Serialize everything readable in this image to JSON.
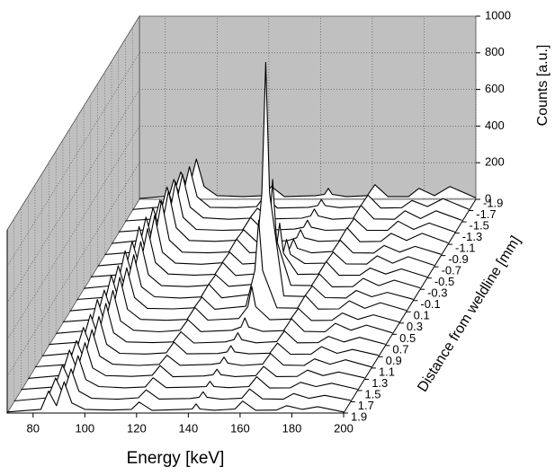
{
  "chart_data": {
    "type": "waterfall",
    "x_label": "Energy [keV]",
    "y_label": "Counts [a.u.]",
    "z_label": "Distance from weldline [mm]",
    "xlim": [
      70,
      200
    ],
    "xticks": [
      80,
      100,
      120,
      140,
      160,
      180,
      200
    ],
    "ylim": [
      0,
      1000
    ],
    "yticks": [
      0,
      200,
      400,
      600,
      800,
      1000
    ],
    "zlim": [
      1.9,
      -1.9
    ],
    "wall_color": "#c0c0c0",
    "trace_color": "#000000",
    "grid": true,
    "x": [
      70,
      83,
      86,
      89,
      92,
      95,
      100,
      110,
      118,
      121,
      126,
      138,
      141.5,
      143,
      144.5,
      150,
      158,
      161,
      166,
      174,
      178,
      184,
      190,
      200
    ],
    "z": [
      -1.9,
      -1.7,
      -1.5,
      -1.3,
      -1.1,
      -0.9,
      -0.7,
      -0.5,
      -0.3,
      -0.1,
      0.1,
      0.3,
      0.5,
      0.7,
      0.9,
      1.1,
      1.3,
      1.5,
      1.7,
      1.9
    ],
    "series": [
      {
        "values": [
          5,
          20,
          150,
          50,
          220,
          70,
          20,
          15,
          20,
          70,
          15,
          20,
          27,
          60,
          27,
          15,
          20,
          80,
          15,
          15,
          60,
          20,
          70,
          8
        ]
      },
      {
        "values": [
          6,
          22,
          170,
          55,
          240,
          75,
          18,
          16,
          22,
          80,
          14,
          18,
          27,
          60,
          27,
          16,
          22,
          85,
          14,
          16,
          55,
          22,
          65,
          7
        ]
      },
      {
        "values": [
          5,
          18,
          190,
          60,
          260,
          80,
          22,
          14,
          20,
          75,
          16,
          20,
          32,
          70,
          32,
          14,
          20,
          90,
          16,
          14,
          60,
          18,
          60,
          8
        ]
      },
      {
        "values": [
          7,
          20,
          180,
          55,
          280,
          85,
          20,
          15,
          18,
          85,
          15,
          22,
          32,
          70,
          32,
          15,
          18,
          80,
          15,
          15,
          65,
          20,
          55,
          6
        ]
      },
      {
        "values": [
          5,
          24,
          200,
          65,
          290,
          90,
          21,
          16,
          22,
          80,
          14,
          20,
          36,
          80,
          36,
          16,
          20,
          90,
          14,
          16,
          60,
          21,
          60,
          8
        ]
      },
      {
        "values": [
          6,
          20,
          210,
          60,
          300,
          85,
          19,
          15,
          20,
          90,
          16,
          22,
          40,
          90,
          40,
          15,
          22,
          85,
          15,
          14,
          55,
          19,
          50,
          7
        ]
      },
      {
        "values": [
          5,
          22,
          220,
          65,
          280,
          80,
          20,
          14,
          22,
          80,
          15,
          25,
          68,
          150,
          68,
          18,
          20,
          80,
          16,
          15,
          60,
          20,
          55,
          8
        ]
      },
      {
        "values": [
          7,
          20,
          200,
          60,
          270,
          85,
          22,
          16,
          20,
          85,
          14,
          28,
          135,
          300,
          135,
          20,
          22,
          90,
          15,
          16,
          55,
          22,
          50,
          6
        ]
      },
      {
        "values": [
          5,
          23,
          210,
          62,
          260,
          80,
          20,
          15,
          22,
          80,
          16,
          30,
          270,
          600,
          270,
          22,
          20,
          85,
          14,
          15,
          60,
          20,
          50,
          8
        ]
      },
      {
        "values": [
          6,
          20,
          190,
          58,
          250,
          75,
          21,
          14,
          20,
          90,
          15,
          35,
          585,
          1300,
          585,
          25,
          22,
          80,
          16,
          14,
          55,
          21,
          45,
          7
        ]
      },
      {
        "values": [
          5,
          22,
          200,
          60,
          240,
          78,
          19,
          16,
          22,
          80,
          14,
          30,
          225,
          500,
          225,
          22,
          20,
          90,
          15,
          16,
          60,
          19,
          50,
          8
        ]
      },
      {
        "values": [
          7,
          20,
          180,
          55,
          250,
          75,
          20,
          15,
          20,
          85,
          16,
          25,
          90,
          200,
          90,
          18,
          22,
          80,
          14,
          15,
          55,
          20,
          45,
          6
        ]
      },
      {
        "values": [
          5,
          21,
          190,
          58,
          240,
          72,
          22,
          14,
          22,
          80,
          15,
          22,
          40,
          90,
          40,
          16,
          20,
          85,
          16,
          14,
          60,
          22,
          50,
          8
        ]
      },
      {
        "values": [
          6,
          20,
          170,
          52,
          230,
          70,
          20,
          16,
          20,
          75,
          14,
          20,
          32,
          70,
          32,
          15,
          22,
          80,
          15,
          16,
          50,
          20,
          45,
          7
        ]
      },
      {
        "values": [
          5,
          22,
          160,
          50,
          220,
          68,
          19,
          15,
          22,
          80,
          16,
          18,
          27,
          60,
          27,
          16,
          20,
          75,
          14,
          15,
          55,
          19,
          40,
          8
        ]
      },
      {
        "values": [
          7,
          20,
          150,
          48,
          210,
          65,
          21,
          14,
          20,
          70,
          15,
          20,
          27,
          60,
          27,
          14,
          22,
          80,
          16,
          14,
          50,
          21,
          45,
          6
        ]
      },
      {
        "values": [
          5,
          21,
          160,
          50,
          200,
          62,
          20,
          16,
          22,
          75,
          14,
          18,
          25,
          55,
          25,
          15,
          20,
          70,
          15,
          16,
          50,
          20,
          40,
          8
        ]
      },
      {
        "values": [
          6,
          20,
          140,
          45,
          190,
          60,
          22,
          15,
          20,
          70,
          16,
          20,
          22,
          50,
          22,
          16,
          22,
          75,
          14,
          15,
          45,
          22,
          40,
          7
        ]
      },
      {
        "values": [
          5,
          22,
          130,
          42,
          180,
          58,
          19,
          14,
          22,
          65,
          15,
          18,
          25,
          55,
          25,
          14,
          20,
          70,
          16,
          14,
          45,
          19,
          35,
          8
        ]
      },
      {
        "values": [
          6,
          20,
          120,
          40,
          170,
          55,
          20,
          16,
          20,
          60,
          14,
          20,
          22,
          50,
          22,
          15,
          22,
          65,
          15,
          16,
          40,
          20,
          35,
          6
        ]
      }
    ]
  }
}
